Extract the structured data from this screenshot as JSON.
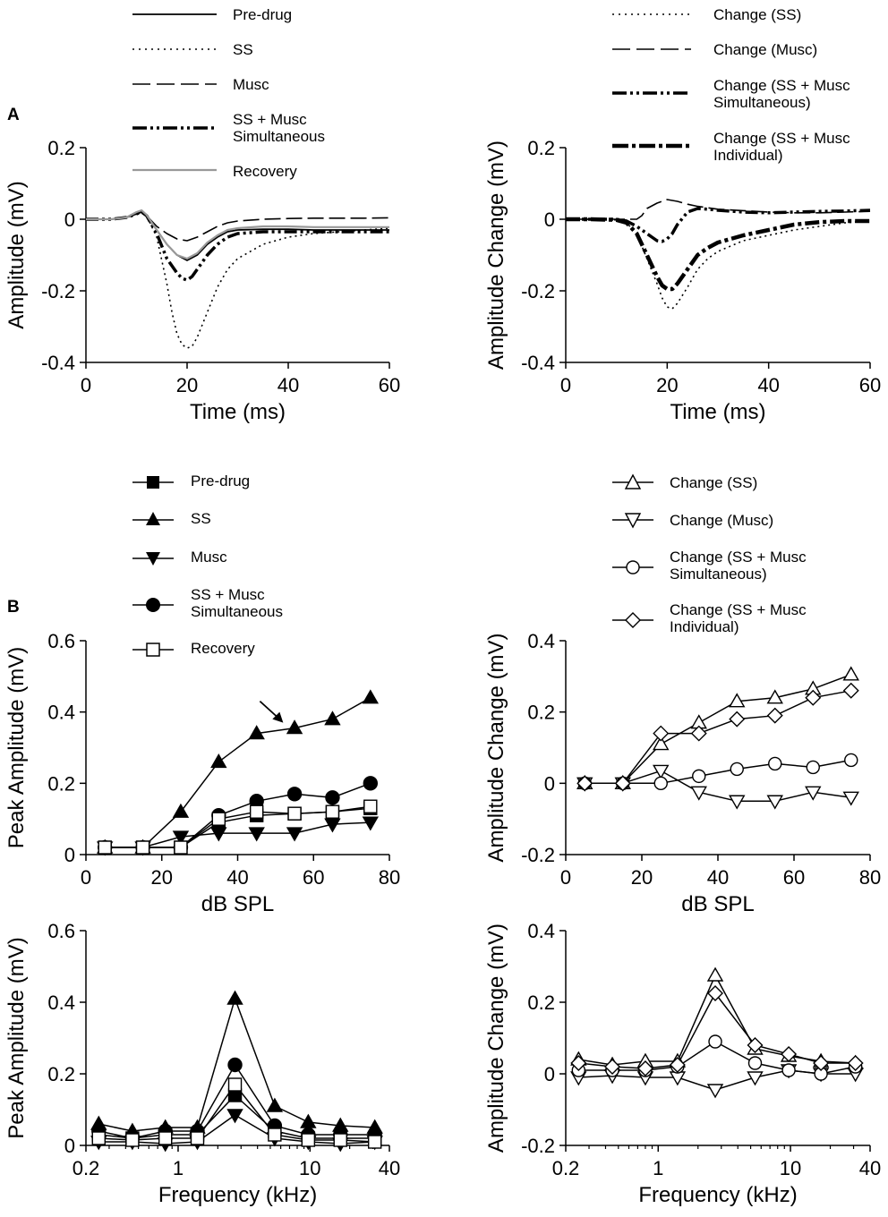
{
  "panel_labels": {
    "a": "A",
    "b": "B"
  },
  "legends": {
    "a_left": [
      "Pre-drug",
      "SS",
      "Musc",
      "SS + Musc",
      "Simultaneous",
      "Recovery"
    ],
    "a_right": [
      "Change (SS)",
      "Change (Musc)",
      "Change (SS + Musc",
      "Simultaneous)",
      "Change (SS + Musc",
      "Individual)"
    ],
    "b_left": [
      "Pre-drug",
      "SS",
      "Musc",
      "SS + Musc",
      "Simultaneous",
      "Recovery"
    ],
    "b_right": [
      "Change (SS)",
      "Change (Musc)",
      "Change (SS + Musc",
      "Simultaneous)",
      "Change (SS + Musc",
      "Individual)"
    ]
  },
  "chart_data": [
    {
      "id": "A1",
      "type": "line",
      "xlabel": "Time (ms)",
      "ylabel": "Amplitude (mV)",
      "xlim": [
        0,
        60
      ],
      "ylim": [
        -0.4,
        0.2
      ],
      "xticks": [
        0,
        20,
        40,
        60
      ],
      "yticks": [
        -0.4,
        -0.2,
        0,
        0.2
      ],
      "ytick_labels": [
        "-0.4",
        "-0.2",
        "0",
        "0.2"
      ],
      "series": [
        {
          "name": "Pre-drug",
          "style": "solid",
          "x": [
            0,
            5,
            8,
            10,
            11,
            12,
            14,
            16,
            18,
            20,
            22,
            24,
            26,
            28,
            30,
            35,
            40,
            45,
            50,
            55,
            60
          ],
          "y": [
            0,
            0,
            0.005,
            0.015,
            0.02,
            0.01,
            -0.03,
            -0.07,
            -0.1,
            -0.115,
            -0.1,
            -0.07,
            -0.05,
            -0.035,
            -0.03,
            -0.028,
            -0.028,
            -0.03,
            -0.03,
            -0.03,
            -0.03
          ]
        },
        {
          "name": "SS",
          "style": "dotted",
          "x": [
            0,
            5,
            8,
            10,
            11,
            12,
            14,
            16,
            17,
            18,
            19,
            20,
            21,
            22,
            24,
            26,
            28,
            30,
            35,
            40,
            45,
            50,
            55,
            60
          ],
          "y": [
            0,
            0,
            0.005,
            0.015,
            0.02,
            0.01,
            -0.05,
            -0.18,
            -0.26,
            -0.32,
            -0.35,
            -0.36,
            -0.355,
            -0.33,
            -0.26,
            -0.19,
            -0.14,
            -0.11,
            -0.07,
            -0.05,
            -0.04,
            -0.035,
            -0.03,
            -0.025
          ]
        },
        {
          "name": "Musc",
          "style": "dash",
          "x": [
            0,
            5,
            8,
            10,
            11,
            12,
            14,
            16,
            18,
            20,
            22,
            24,
            26,
            28,
            30,
            35,
            40,
            45,
            50,
            55,
            60
          ],
          "y": [
            0,
            0,
            0.005,
            0.015,
            0.02,
            0.01,
            -0.02,
            -0.04,
            -0.055,
            -0.06,
            -0.05,
            -0.035,
            -0.02,
            -0.01,
            -0.005,
            0,
            0.002,
            0.003,
            0.003,
            0.003,
            0.004
          ]
        },
        {
          "name": "SS + Musc Simultaneous",
          "style": "dashdot",
          "x": [
            0,
            5,
            8,
            10,
            11,
            12,
            14,
            16,
            18,
            19,
            20,
            21,
            22,
            24,
            26,
            28,
            30,
            35,
            40,
            45,
            50,
            55,
            60
          ],
          "y": [
            0,
            0,
            0.005,
            0.015,
            0.02,
            0.01,
            -0.04,
            -0.11,
            -0.15,
            -0.165,
            -0.17,
            -0.16,
            -0.14,
            -0.1,
            -0.07,
            -0.05,
            -0.04,
            -0.035,
            -0.035,
            -0.035,
            -0.035,
            -0.035,
            -0.035
          ]
        },
        {
          "name": "Recovery",
          "style": "gray",
          "x": [
            0,
            5,
            8,
            10,
            11,
            12,
            14,
            16,
            18,
            20,
            22,
            24,
            26,
            28,
            30,
            35,
            40,
            45,
            50,
            55,
            60
          ],
          "y": [
            0,
            0,
            0.005,
            0.02,
            0.025,
            0.012,
            -0.03,
            -0.07,
            -0.1,
            -0.11,
            -0.095,
            -0.065,
            -0.045,
            -0.03,
            -0.025,
            -0.02,
            -0.02,
            -0.022,
            -0.022,
            -0.022,
            -0.022
          ]
        }
      ]
    },
    {
      "id": "A2",
      "type": "line",
      "xlabel": "Time (ms)",
      "ylabel": "Amplitude Change (mV)",
      "xlim": [
        0,
        60
      ],
      "ylim": [
        -0.4,
        0.2
      ],
      "xticks": [
        0,
        20,
        40,
        60
      ],
      "yticks": [
        -0.4,
        -0.2,
        0,
        0.2
      ],
      "ytick_labels": [
        "-0.4",
        "-0.2",
        "0",
        "0.2"
      ],
      "series": [
        {
          "name": "Change (SS)",
          "style": "dotted",
          "x": [
            0,
            5,
            10,
            12,
            14,
            16,
            18,
            19,
            20,
            21,
            22,
            24,
            26,
            28,
            30,
            35,
            40,
            45,
            50,
            55,
            60
          ],
          "y": [
            0,
            0,
            -0.002,
            -0.01,
            -0.04,
            -0.11,
            -0.18,
            -0.22,
            -0.245,
            -0.25,
            -0.235,
            -0.19,
            -0.14,
            -0.11,
            -0.09,
            -0.06,
            -0.045,
            -0.03,
            -0.02,
            -0.01,
            -0.005
          ]
        },
        {
          "name": "Change (Musc)",
          "style": "dash",
          "x": [
            0,
            5,
            10,
            12,
            14,
            15,
            16,
            18,
            20,
            22,
            24,
            26,
            28,
            30,
            35,
            40,
            45,
            50,
            55,
            60
          ],
          "y": [
            0,
            0,
            0,
            0,
            0,
            0.01,
            0.03,
            0.045,
            0.055,
            0.05,
            0.042,
            0.036,
            0.032,
            0.028,
            0.024,
            0.02,
            0.018,
            0.018,
            0.02,
            0.022
          ]
        },
        {
          "name": "Change (SS + Musc Simultaneous)",
          "style": "dashdot",
          "x": [
            0,
            5,
            10,
            12,
            14,
            16,
            17,
            18,
            19,
            20,
            21,
            22,
            24,
            26,
            28,
            30,
            35,
            40,
            45,
            50,
            55,
            60
          ],
          "y": [
            0,
            0,
            0,
            -0.005,
            -0.02,
            -0.04,
            -0.05,
            -0.06,
            -0.062,
            -0.055,
            -0.04,
            -0.015,
            0.02,
            0.03,
            0.028,
            0.025,
            0.02,
            0.018,
            0.02,
            0.022,
            0.023,
            0.025
          ]
        },
        {
          "name": "Change (SS + Musc Individual)",
          "style": "dashdot-thick",
          "x": [
            0,
            5,
            10,
            12,
            14,
            16,
            18,
            19,
            20,
            21,
            22,
            24,
            26,
            28,
            30,
            35,
            40,
            45,
            50,
            55,
            60
          ],
          "y": [
            0,
            0,
            -0.002,
            -0.01,
            -0.04,
            -0.1,
            -0.16,
            -0.185,
            -0.195,
            -0.195,
            -0.18,
            -0.14,
            -0.1,
            -0.08,
            -0.065,
            -0.045,
            -0.03,
            -0.015,
            -0.008,
            -0.005,
            -0.005
          ]
        }
      ]
    },
    {
      "id": "B1",
      "type": "line",
      "xlabel": "dB SPL",
      "ylabel": "Peak Amplitude (mV)",
      "xlim": [
        0,
        80
      ],
      "ylim": [
        0,
        0.6
      ],
      "xticks": [
        0,
        20,
        40,
        60,
        80
      ],
      "yticks": [
        0,
        0.2,
        0.4,
        0.6
      ],
      "ytick_labels": [
        "0",
        "0.2",
        "0.4",
        "0.6"
      ],
      "x": [
        5,
        15,
        25,
        35,
        45,
        55,
        65,
        75
      ],
      "series": [
        {
          "name": "Pre-drug",
          "marker": "square-filled",
          "values": [
            0.02,
            0.02,
            0.02,
            0.09,
            0.11,
            0.115,
            0.12,
            0.13
          ]
        },
        {
          "name": "SS",
          "marker": "triangle-up-filled",
          "values": [
            0.02,
            0.02,
            0.12,
            0.26,
            0.34,
            0.355,
            0.38,
            0.44
          ]
        },
        {
          "name": "Musc",
          "marker": "triangle-down-filled",
          "values": [
            0.02,
            0.02,
            0.05,
            0.06,
            0.06,
            0.06,
            0.085,
            0.09
          ]
        },
        {
          "name": "SS + Musc Simultaneous",
          "marker": "circle-filled",
          "values": [
            0.02,
            0.02,
            0.02,
            0.11,
            0.15,
            0.17,
            0.16,
            0.2
          ]
        },
        {
          "name": "Recovery",
          "marker": "square-open",
          "values": [
            0.02,
            0.02,
            0.02,
            0.1,
            0.12,
            0.115,
            0.12,
            0.135
          ]
        }
      ]
    },
    {
      "id": "B2",
      "type": "line",
      "xlabel": "dB SPL",
      "ylabel": "Amplitude Change (mV)",
      "xlim": [
        0,
        80
      ],
      "ylim": [
        -0.2,
        0.4
      ],
      "xticks": [
        0,
        20,
        40,
        60,
        80
      ],
      "yticks": [
        -0.2,
        0,
        0.2,
        0.4
      ],
      "ytick_labels": [
        "-0.2",
        "0",
        "0.2",
        "0.4"
      ],
      "x": [
        5,
        15,
        25,
        35,
        45,
        55,
        65,
        75
      ],
      "series": [
        {
          "name": "Change (SS)",
          "marker": "triangle-up-open",
          "values": [
            0,
            0,
            0.11,
            0.17,
            0.23,
            0.24,
            0.265,
            0.305
          ]
        },
        {
          "name": "Change (Musc)",
          "marker": "triangle-down-open",
          "values": [
            0,
            0,
            0.035,
            -0.025,
            -0.05,
            -0.05,
            -0.025,
            -0.04
          ]
        },
        {
          "name": "Change (SS + Musc Simultaneous)",
          "marker": "circle-open",
          "values": [
            0,
            0,
            0,
            0.02,
            0.04,
            0.055,
            0.045,
            0.065
          ]
        },
        {
          "name": "Change (SS + Musc Individual)",
          "marker": "diamond-open",
          "values": [
            0,
            0,
            0.14,
            0.14,
            0.18,
            0.19,
            0.24,
            0.26
          ]
        }
      ]
    },
    {
      "id": "B3",
      "type": "line",
      "xscale": "log",
      "xlabel": "Frequency (kHz)",
      "ylabel": "Peak Amplitude (mV)",
      "xlim": [
        0.2,
        40
      ],
      "ylim": [
        0,
        0.6
      ],
      "xticks": [
        0.2,
        1,
        10,
        40
      ],
      "xtick_labels": [
        "0.2",
        "1",
        "10",
        "40"
      ],
      "yticks": [
        0,
        0.2,
        0.4,
        0.6
      ],
      "ytick_labels": [
        "0",
        "0.2",
        "0.4",
        "0.6"
      ],
      "x": [
        0.25,
        0.45,
        0.8,
        1.4,
        2.7,
        5.4,
        9.7,
        17,
        31
      ],
      "series": [
        {
          "name": "Pre-drug",
          "marker": "square-filled",
          "values": [
            0.03,
            0.02,
            0.03,
            0.03,
            0.14,
            0.04,
            0.02,
            0.02,
            0.02
          ]
        },
        {
          "name": "SS",
          "marker": "triangle-up-filled",
          "values": [
            0.06,
            0.04,
            0.05,
            0.05,
            0.41,
            0.11,
            0.065,
            0.055,
            0.05
          ]
        },
        {
          "name": "Musc",
          "marker": "triangle-down-filled",
          "values": [
            0.01,
            0.01,
            0.005,
            0.01,
            0.085,
            0.02,
            0.01,
            0.005,
            0.01
          ]
        },
        {
          "name": "SS + Musc Simultaneous",
          "marker": "circle-filled",
          "values": [
            0.04,
            0.02,
            0.04,
            0.04,
            0.225,
            0.055,
            0.03,
            0.03,
            0.03
          ]
        },
        {
          "name": "Recovery",
          "marker": "square-open",
          "values": [
            0.02,
            0.015,
            0.02,
            0.02,
            0.17,
            0.03,
            0.015,
            0.015,
            0.01
          ]
        }
      ]
    },
    {
      "id": "B4",
      "type": "line",
      "xscale": "log",
      "xlabel": "Frequency (kHz)",
      "ylabel": "Amplitude Change (mV)",
      "xlim": [
        0.2,
        40
      ],
      "ylim": [
        -0.2,
        0.4
      ],
      "xticks": [
        0.2,
        1,
        10,
        40
      ],
      "xtick_labels": [
        "0.2",
        "1",
        "10",
        "40"
      ],
      "yticks": [
        -0.2,
        0,
        0.2,
        0.4
      ],
      "ytick_labels": [
        "-0.2",
        "0",
        "0.2",
        "0.4"
      ],
      "x": [
        0.25,
        0.45,
        0.8,
        1.4,
        2.7,
        5.4,
        9.7,
        17,
        31
      ],
      "series": [
        {
          "name": "Change (SS)",
          "marker": "triangle-up-open",
          "values": [
            0.04,
            0.025,
            0.035,
            0.035,
            0.275,
            0.07,
            0.05,
            0.035,
            0.03
          ]
        },
        {
          "name": "Change (Musc)",
          "marker": "triangle-down-open",
          "values": [
            -0.01,
            -0.005,
            -0.01,
            -0.01,
            -0.045,
            -0.01,
            0.01,
            0.0,
            0.0
          ]
        },
        {
          "name": "Change (SS + Musc Simultaneous)",
          "marker": "circle-open",
          "values": [
            0.01,
            0.01,
            0.01,
            0.02,
            0.09,
            0.03,
            0.01,
            0.0,
            0.02
          ]
        },
        {
          "name": "Change (SS + Musc Individual)",
          "marker": "diamond-open",
          "values": [
            0.03,
            0.02,
            0.015,
            0.025,
            0.225,
            0.08,
            0.055,
            0.03,
            0.03
          ]
        }
      ]
    }
  ]
}
